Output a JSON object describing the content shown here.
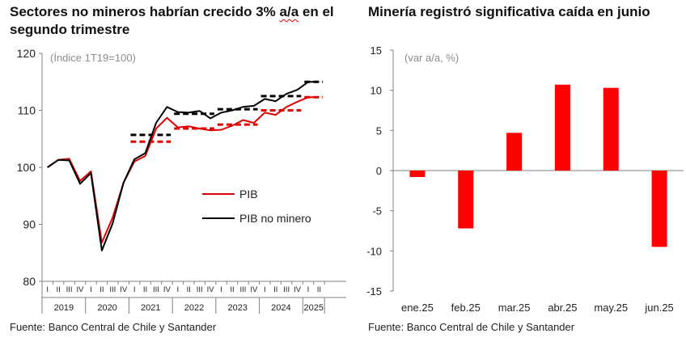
{
  "left_chart": {
    "title_part1": "Sectores no mineros habrían crecido 3% ",
    "title_wavy": "a/a",
    "title_part2": " en el segundo trimestre",
    "subtitle": "(Índice 1T19=100)",
    "source": "Fuente: Banco Central de Chile y Santander",
    "colors": {
      "pib": "#e00000",
      "pib_no_minero": "#000000",
      "axis": "#808080"
    }
  },
  "right_chart": {
    "title": "Minería registró significativa caída en junio",
    "subtitle": "(var a/a, %)",
    "source": "Fuente: Banco Central de Chile y Santander",
    "colors": {
      "bar": "#ff0000",
      "axis": "#808080"
    }
  },
  "chart_data": [
    {
      "type": "line",
      "title": "Sectores no mineros habrían crecido 3% a/a en el segundo trimestre",
      "subtitle": "(Índice 1T19=100)",
      "ylim": [
        80,
        120
      ],
      "yticks": [
        80,
        90,
        100,
        110,
        120
      ],
      "quarter_labels": [
        "I",
        "II",
        "III",
        "IV",
        "I",
        "II",
        "III",
        "IV",
        "I",
        "II",
        "III",
        "IV",
        "I",
        "II",
        "III",
        "IV",
        "I",
        "II",
        "III",
        "IV",
        "I",
        "II",
        "III",
        "IV",
        "I",
        "II"
      ],
      "year_labels": [
        "2019",
        "2020",
        "2021",
        "2022",
        "2023",
        "2024",
        "2025"
      ],
      "legend": [
        "PIB",
        "PIB no minero"
      ],
      "legend_position": "center-right",
      "series": [
        {
          "name": "PIB",
          "color": "#e00000",
          "style": "solid",
          "values": [
            100.0,
            101.3,
            101.5,
            97.6,
            99.3,
            86.8,
            91.2,
            97.3,
            101.0,
            102.0,
            106.8,
            108.7,
            107.0,
            107.2,
            106.8,
            106.5,
            106.6,
            107.3,
            108.3,
            107.8,
            109.6,
            109.2,
            110.6,
            111.5,
            112.3,
            112.3
          ]
        },
        {
          "name": "PIB no minero",
          "color": "#000000",
          "style": "solid",
          "values": [
            100.0,
            101.3,
            101.2,
            97.1,
            99.0,
            85.4,
            90.2,
            97.3,
            101.4,
            102.5,
            107.8,
            110.6,
            109.7,
            109.6,
            109.9,
            108.6,
            109.6,
            110.0,
            110.6,
            110.8,
            112.0,
            111.6,
            112.9,
            113.6,
            115.0,
            115.0
          ]
        },
        {
          "name": "",
          "color": "#e00000",
          "style": "dashed",
          "kind": "annual_average",
          "segments": [
            {
              "year": "2021",
              "value": 104.5
            },
            {
              "year": "2022",
              "value": 106.8
            },
            {
              "year": "2023",
              "value": 107.5
            },
            {
              "year": "2024",
              "value": 110.0
            },
            {
              "year": "2025",
              "value": 112.3
            }
          ]
        },
        {
          "name": "",
          "color": "#000000",
          "style": "dashed",
          "kind": "annual_average",
          "segments": [
            {
              "year": "2021",
              "value": 105.7
            },
            {
              "year": "2022",
              "value": 109.4
            },
            {
              "year": "2023",
              "value": 110.2
            },
            {
              "year": "2024",
              "value": 112.5
            },
            {
              "year": "2025",
              "value": 115.0
            }
          ]
        }
      ]
    },
    {
      "type": "bar",
      "title": "Minería registró significativa caída en junio",
      "subtitle": "(var a/a, %)",
      "categories": [
        "ene.25",
        "feb.25",
        "mar.25",
        "abr.25",
        "may.25",
        "jun.25"
      ],
      "values": [
        -0.8,
        -7.2,
        4.7,
        10.7,
        10.3,
        -9.5
      ],
      "ylim": [
        -15,
        15
      ],
      "yticks": [
        -15,
        -10,
        -5,
        0,
        5,
        10,
        15
      ],
      "color": "#ff0000"
    }
  ]
}
